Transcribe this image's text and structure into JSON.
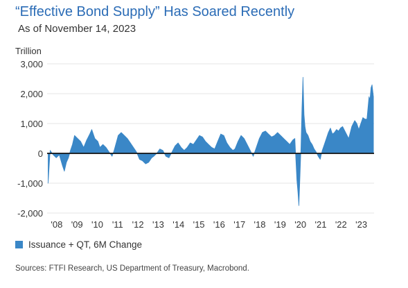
{
  "header": {
    "title": "“Effective Bond Supply” Has Soared Recently",
    "subtitle": "As of November 14, 2023"
  },
  "legend": {
    "label": "Issuance + QT, 6M Change",
    "color_name": "blue-square"
  },
  "source": "Sources: FTFI Research, US Department of Treasury, Macrobond.",
  "colors": {
    "title": "#2b6cb6",
    "series": "#3a87c7",
    "zero_line": "#111111",
    "grid": "#e6e6e6"
  },
  "chart_data": {
    "type": "area",
    "ylabel": "Trillion",
    "ylim": [
      -2000,
      3000
    ],
    "yticks": [
      -2000,
      -1000,
      0,
      1000,
      2000,
      3000
    ],
    "ytick_labels": [
      "-2,000",
      "-1,000",
      "0",
      "1,000",
      "2,000",
      "3,000"
    ],
    "xlim": [
      2007.8,
      2023.9
    ],
    "xticks": [
      2008,
      2009,
      2010,
      2011,
      2012,
      2013,
      2014,
      2015,
      2016,
      2017,
      2018,
      2019,
      2020,
      2021,
      2022,
      2023
    ],
    "xtick_labels": [
      "'08",
      "'09",
      "'10",
      "'11",
      "'12",
      "'13",
      "'14",
      "'15",
      "'16",
      "'17",
      "'18",
      "'19",
      "'20",
      "'21",
      "'22",
      "'23"
    ],
    "grid": "horizontal",
    "series": [
      {
        "name": "Issuance + QT, 6M Change",
        "x": [
          2007.85,
          2007.95,
          2008.1,
          2008.25,
          2008.4,
          2008.55,
          2008.65,
          2008.75,
          2008.85,
          2008.95,
          2009.05,
          2009.15,
          2009.3,
          2009.45,
          2009.6,
          2009.75,
          2009.9,
          2010.0,
          2010.15,
          2010.3,
          2010.4,
          2010.55,
          2010.7,
          2010.85,
          2011.0,
          2011.1,
          2011.2,
          2011.3,
          2011.45,
          2011.6,
          2011.75,
          2011.9,
          2012.05,
          2012.2,
          2012.35,
          2012.5,
          2012.65,
          2012.8,
          2012.95,
          2013.05,
          2013.2,
          2013.35,
          2013.5,
          2013.65,
          2013.8,
          2013.95,
          2014.1,
          2014.25,
          2014.4,
          2014.55,
          2014.7,
          2014.85,
          2015.0,
          2015.15,
          2015.3,
          2015.45,
          2015.6,
          2015.75,
          2015.9,
          2016.05,
          2016.2,
          2016.35,
          2016.5,
          2016.65,
          2016.8,
          2016.95,
          2017.05,
          2017.2,
          2017.35,
          2017.5,
          2017.65,
          2017.8,
          2017.95,
          2018.1,
          2018.25,
          2018.4,
          2018.55,
          2018.7,
          2018.85,
          2019.0,
          2019.15,
          2019.3,
          2019.45,
          2019.6,
          2019.75,
          2019.9,
          2020.0,
          2020.05,
          2020.1,
          2020.15,
          2020.2,
          2020.25,
          2020.3,
          2020.35,
          2020.4,
          2020.45,
          2020.5,
          2020.55,
          2020.65,
          2020.75,
          2020.85,
          2020.95,
          2021.05,
          2021.15,
          2021.25,
          2021.35,
          2021.45,
          2021.55,
          2021.65,
          2021.75,
          2021.85,
          2021.95,
          2022.05,
          2022.15,
          2022.25,
          2022.35,
          2022.5,
          2022.65,
          2022.8,
          2022.95,
          2023.05,
          2023.15,
          2023.25,
          2023.35,
          2023.45,
          2023.55,
          2023.65,
          2023.7,
          2023.75,
          2023.8,
          2023.87
        ],
        "values": [
          -1000,
          100,
          -50,
          -150,
          -50,
          -400,
          -600,
          -300,
          -150,
          100,
          300,
          600,
          500,
          400,
          200,
          450,
          650,
          800,
          500,
          400,
          200,
          300,
          200,
          50,
          -100,
          100,
          350,
          600,
          700,
          600,
          500,
          350,
          200,
          50,
          -200,
          -250,
          -350,
          -300,
          -150,
          -100,
          0,
          150,
          100,
          -100,
          -150,
          50,
          250,
          350,
          200,
          100,
          200,
          350,
          300,
          450,
          600,
          550,
          400,
          300,
          200,
          150,
          400,
          650,
          600,
          350,
          200,
          100,
          150,
          400,
          600,
          500,
          300,
          100,
          -100,
          200,
          500,
          700,
          750,
          650,
          550,
          600,
          700,
          600,
          500,
          400,
          300,
          450,
          500,
          -200,
          -900,
          -1300,
          -1750,
          -800,
          200,
          1500,
          2550,
          1300,
          900,
          700,
          600,
          400,
          300,
          150,
          50,
          -100,
          -200,
          100,
          300,
          500,
          700,
          850,
          650,
          700,
          800,
          750,
          850,
          900,
          700,
          500,
          900,
          1100,
          1000,
          800,
          1000,
          1200,
          1150,
          1150,
          1900,
          1800,
          2200,
          2300,
          1900
        ]
      }
    ]
  }
}
